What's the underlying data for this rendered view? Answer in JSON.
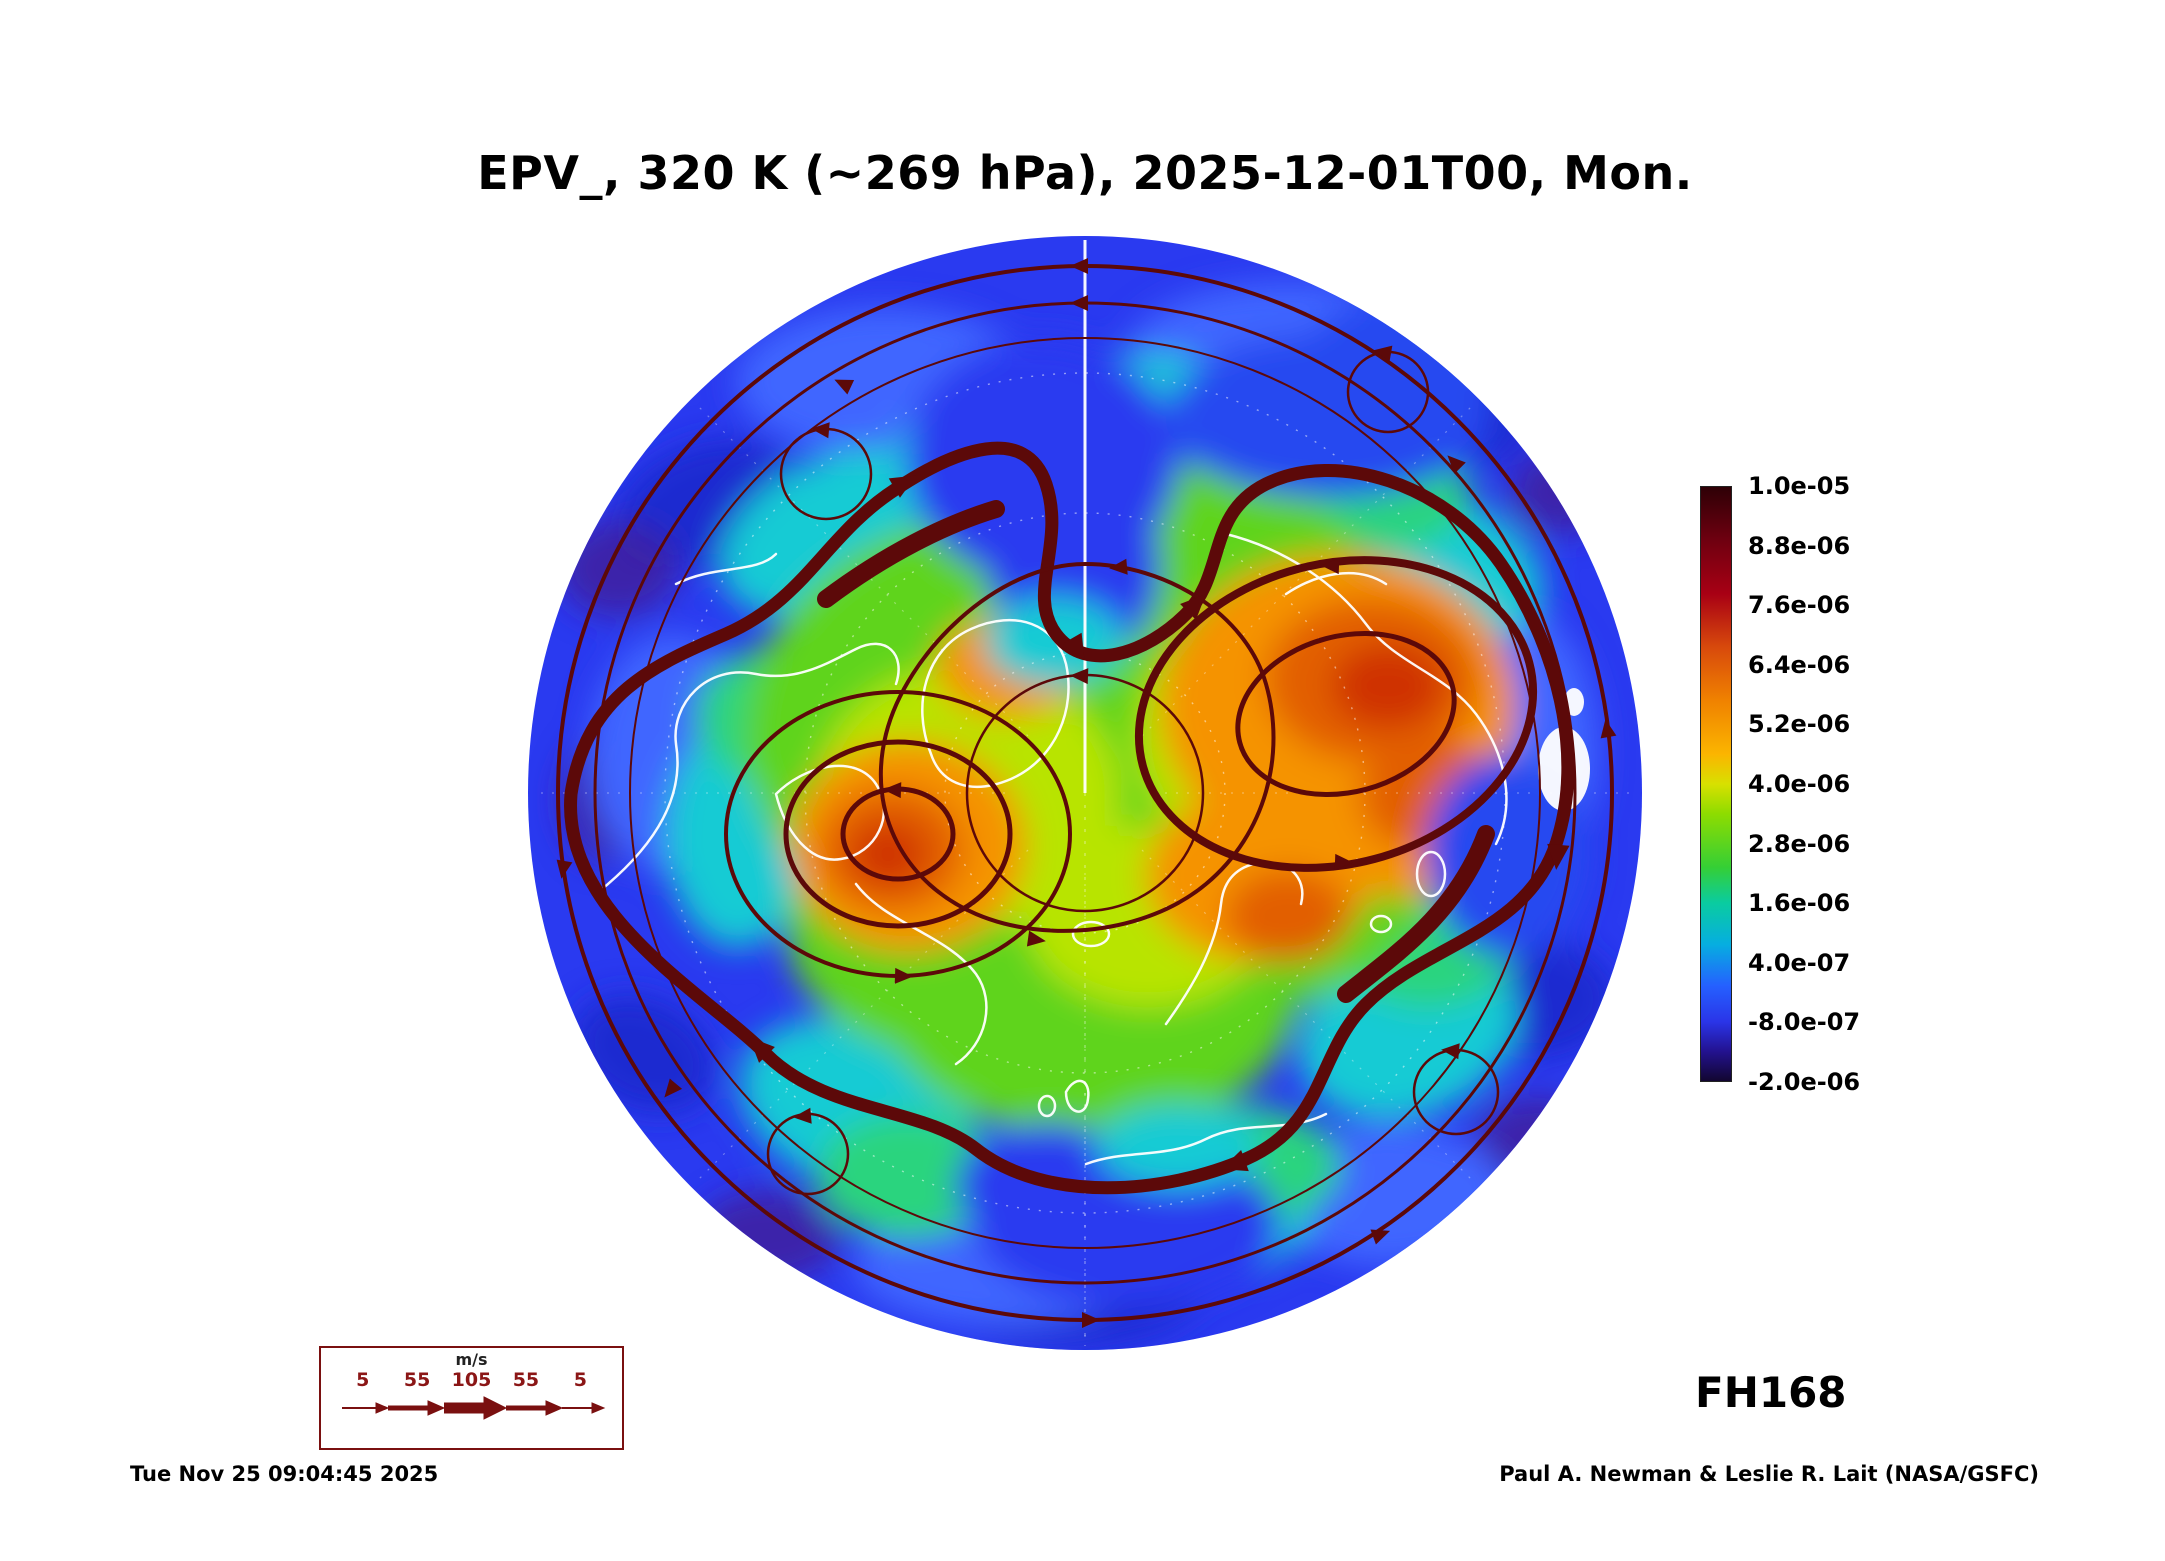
{
  "header": {
    "title": "EPV_, 320 K (~269 hPa), 2025-12-01T00, Mon."
  },
  "footer": {
    "timestamp": "Tue Nov 25 09:04:45 2025",
    "credit": "Paul A. Newman & Leslie R. Lait (NASA/GSFC)",
    "forecast_hour": "FH168"
  },
  "chart_data": {
    "type": "heatmap",
    "title": "EPV_, 320 K (~269 hPa), 2025-12-01T00, Mon.",
    "field": "EPV",
    "level": "320 K (~269 hPa)",
    "valid_time": "2025-12-01T00",
    "valid_day": "Mon.",
    "forecast_hour": "FH168",
    "projection": "north polar stereographic",
    "overlays": [
      "wind streamlines",
      "coastlines",
      "latitude-longitude graticule"
    ],
    "colorbar": {
      "orientation": "vertical",
      "position": "right",
      "levels": [
        "1.0e-05",
        "8.8e-06",
        "7.6e-06",
        "6.4e-06",
        "5.2e-06",
        "4.0e-06",
        "2.8e-06",
        "1.6e-06",
        "4.0e-07",
        "-8.0e-07",
        "-2.0e-06"
      ],
      "gradient": [
        {
          "stop": 0,
          "color": "#2e0006"
        },
        {
          "stop": 9,
          "color": "#6f0010"
        },
        {
          "stop": 18,
          "color": "#a80014"
        },
        {
          "stop": 27,
          "color": "#d84a0c"
        },
        {
          "stop": 36,
          "color": "#f08200"
        },
        {
          "stop": 45,
          "color": "#fbb500"
        },
        {
          "stop": 50,
          "color": "#d8e000"
        },
        {
          "stop": 55,
          "color": "#8edc00"
        },
        {
          "stop": 64,
          "color": "#35cf35"
        },
        {
          "stop": 70,
          "color": "#0acca0"
        },
        {
          "stop": 77,
          "color": "#06aee0"
        },
        {
          "stop": 84,
          "color": "#2560ff"
        },
        {
          "stop": 90,
          "color": "#2a35e8"
        },
        {
          "stop": 95,
          "color": "#231290"
        },
        {
          "stop": 100,
          "color": "#120630"
        }
      ]
    },
    "wind_legend": {
      "units": "m/s",
      "ticks": [
        "5",
        "55",
        "105",
        "55",
        "5"
      ],
      "color": "#7a1010"
    },
    "accent_colors": {
      "streamline": "#5c0909",
      "coastline": "#ffffff",
      "page_background": "#ffffff"
    }
  }
}
